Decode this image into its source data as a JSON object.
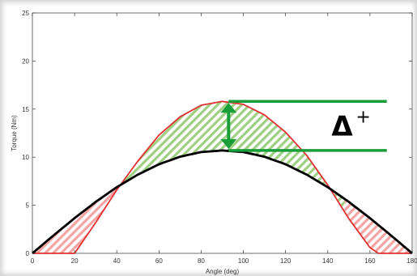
{
  "chart_data": {
    "type": "line",
    "xlabel": "Angle (deg)",
    "ylabel": "Torque (Nm)",
    "xlim": [
      0,
      180
    ],
    "ylim": [
      0,
      25
    ],
    "xticks": [
      0,
      20,
      40,
      60,
      80,
      100,
      120,
      140,
      160,
      180
    ],
    "yticks": [
      0,
      5,
      10,
      15,
      20,
      25
    ],
    "grid": false,
    "series": [
      {
        "color": "#000000",
        "x": [
          0,
          10,
          20,
          30,
          40,
          50,
          60,
          70,
          80,
          90,
          100,
          110,
          120,
          130,
          140,
          150,
          160,
          170,
          180
        ],
        "y": [
          0,
          1.86,
          3.66,
          5.35,
          6.88,
          8.19,
          9.26,
          10.05,
          10.53,
          10.7,
          10.53,
          10.05,
          9.26,
          8.19,
          6.88,
          5.35,
          3.66,
          1.86,
          0
        ]
      },
      {
        "color": "#e03030",
        "x": [
          0,
          20,
          30,
          40,
          50,
          60,
          70,
          80,
          90,
          100,
          110,
          120,
          130,
          140,
          150,
          160,
          164,
          180
        ],
        "y": [
          0,
          0,
          3.2,
          6.6,
          9.6,
          12.3,
          14.2,
          15.4,
          15.8,
          15.5,
          14.4,
          12.6,
          10.2,
          7.1,
          3.6,
          0.6,
          0,
          0
        ]
      }
    ],
    "annotations": [
      {
        "text": "Δ",
        "superscript": "+",
        "color": "#1a9e3a",
        "x_start": 93,
        "x_end": 168,
        "y_top": 15.8,
        "y_bottom": 10.7
      }
    ],
    "shaded_regions": [
      {
        "color": "#7fbf5f",
        "x_range": [
          43,
          148
        ],
        "between": "red above black"
      },
      {
        "color": "#f08080",
        "x_range": [
          0,
          43
        ],
        "between": "black above red"
      },
      {
        "color": "#f08080",
        "x_range": [
          148,
          180
        ],
        "between": "black above red"
      }
    ]
  }
}
